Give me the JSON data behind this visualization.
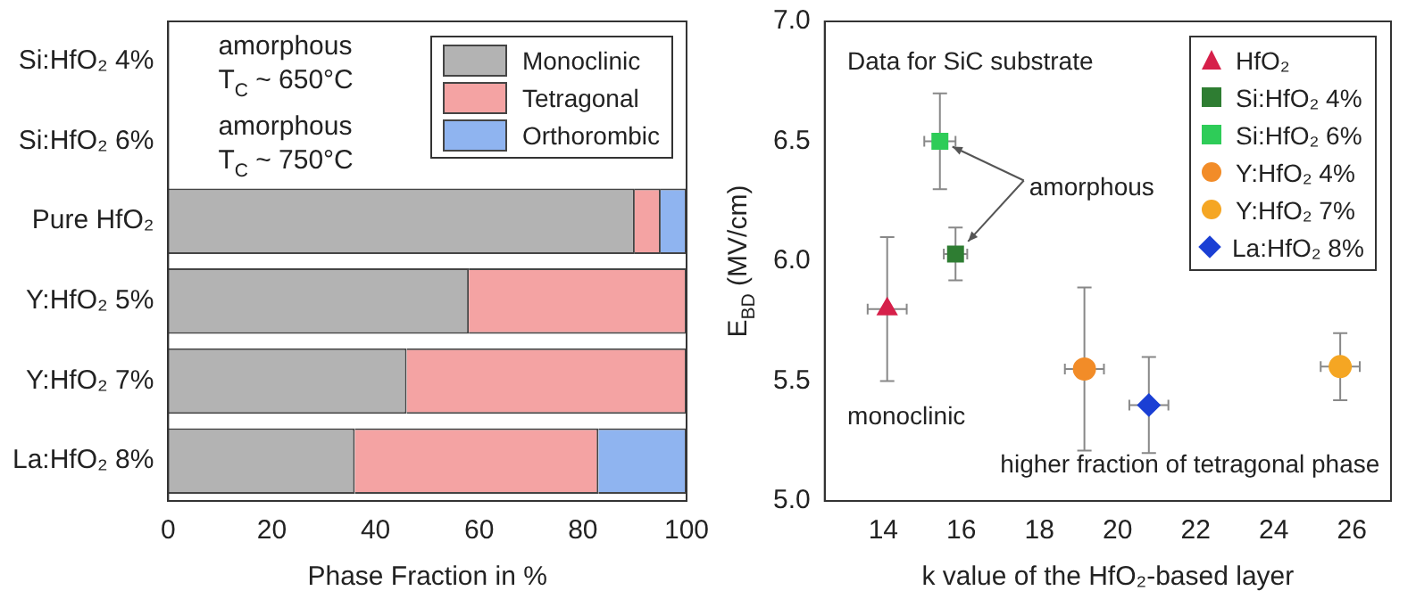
{
  "chart_data": [
    {
      "type": "bar",
      "orientation": "horizontal",
      "stacked": true,
      "xlabel": "Phase Fraction in %",
      "categories": [
        "Si:HfO₂ 4%",
        "Si:HfO₂ 6%",
        "Pure HfO₂",
        "Y:HfO₂ 5%",
        "Y:HfO₂ 7%",
        "La:HfO₂ 8%"
      ],
      "series": [
        {
          "name": "Monoclinic",
          "color": "#b3b3b3",
          "values": [
            null,
            null,
            90,
            58,
            46,
            36
          ]
        },
        {
          "name": "Tetragonal",
          "color": "#f4a3a3",
          "values": [
            null,
            null,
            5,
            42,
            54,
            47
          ]
        },
        {
          "name": "Orthorombic",
          "color": "#8fb4f0",
          "values": [
            null,
            null,
            5,
            null,
            null,
            17
          ]
        }
      ],
      "xlim": [
        0,
        100
      ],
      "xticks": [
        0,
        20,
        40,
        60,
        80,
        100
      ],
      "grid": false,
      "legend": "top right",
      "annotations": [
        "amorphous\nT$_{C}$ ~ 650°C",
        "amorphous\nT$_{C}$ ~ 750°C"
      ]
    },
    {
      "type": "scatter",
      "xlabel": "k value of the HfO₂-based layer",
      "ylabel": "E$_{BD}$ (MV/cm)",
      "series": [
        {
          "name": "HfO₂",
          "color": "#d6204a",
          "marker": "triangle",
          "x": [
            14.1
          ],
          "values": [
            5.8
          ],
          "errors": [
            [
              5.5,
              6.1
            ]
          ],
          "xerrors": [
            0.5
          ]
        },
        {
          "name": "Si:HfO₂ 4%",
          "color": "#2e7d32",
          "marker": "square",
          "x": [
            15.85
          ],
          "values": [
            6.03
          ],
          "errors": [
            [
              5.92,
              6.14
            ]
          ],
          "xerrors": [
            0.3
          ]
        },
        {
          "name": "Si:HfO₂ 6%",
          "color": "#2ecc58",
          "marker": "square",
          "x": [
            15.45
          ],
          "values": [
            6.5
          ],
          "errors": [
            [
              6.3,
              6.7
            ]
          ],
          "xerrors": [
            0.4
          ]
        },
        {
          "name": "Y:HfO₂ 4%",
          "color": "#f28c28",
          "marker": "circle",
          "x": [
            19.15
          ],
          "values": [
            5.55
          ],
          "errors": [
            [
              5.21,
              5.89
            ]
          ],
          "xerrors": [
            0.5
          ]
        },
        {
          "name": "Y:HfO₂ 7%",
          "color": "#f5a623",
          "marker": "circle",
          "x": [
            25.7
          ],
          "values": [
            5.56
          ],
          "errors": [
            [
              5.42,
              5.7
            ]
          ],
          "xerrors": [
            0.5
          ]
        },
        {
          "name": "La:HfO₂ 8%",
          "color": "#1a3fd4",
          "marker": "diamond",
          "x": [
            20.8
          ],
          "values": [
            5.4
          ],
          "errors": [
            [
              5.2,
              5.6
            ]
          ],
          "xerrors": [
            0.5
          ]
        }
      ],
      "xlim": [
        12.5,
        27
      ],
      "xticks": [
        14,
        16,
        18,
        20,
        22,
        24,
        26
      ],
      "ylim": [
        5,
        7
      ],
      "yticks": [
        {
          "value": 5,
          "label": "5.0"
        },
        5.5,
        {
          "value": 6,
          "label": "6.0"
        },
        6.5,
        {
          "value": 7,
          "label": "7.0"
        }
      ],
      "grid": false,
      "legend": "top right",
      "annotations": [
        "Data for SiC substrate",
        {
          "text": "amorphous",
          "x": 15.45,
          "y": 6.5
        },
        "monoclinic",
        "higher fraction of tetragonal phase"
      ]
    }
  ]
}
